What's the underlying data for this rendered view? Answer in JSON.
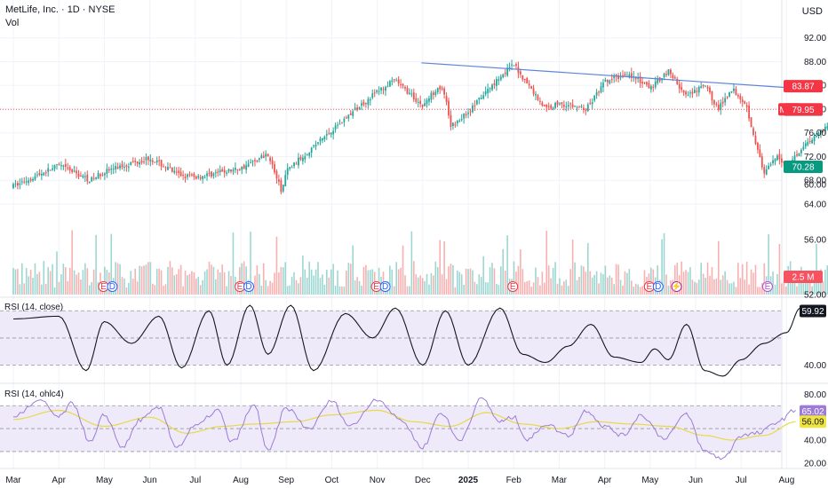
{
  "header": {
    "title": "MetLife, Inc. · 1D · NYSE",
    "volume_label": "Vol",
    "currency": "USD"
  },
  "chart_data": {
    "type": "candlestick",
    "price_axis": {
      "ticks": [
        64,
        68,
        72,
        76,
        80,
        84,
        88,
        92
      ],
      "range": [
        62.2,
        93.6
      ]
    },
    "x_axis": {
      "labels": [
        "Mar",
        "Apr",
        "May",
        "Jun",
        "Jul",
        "Aug",
        "Sep",
        "Oct",
        "Nov",
        "Dec",
        "2025",
        "Feb",
        "Mar",
        "Apr",
        "May",
        "Jun",
        "Jul",
        "Aug"
      ],
      "months_per_label": 1
    },
    "price_path": {
      "points": [
        [
          0,
          67.0
        ],
        [
          1,
          70.5
        ],
        [
          1.7,
          68.0
        ],
        [
          2,
          69.5
        ],
        [
          3,
          71.8
        ],
        [
          3.6,
          69.0
        ],
        [
          4,
          68.5
        ],
        [
          5,
          70.0
        ],
        [
          5.6,
          72.5
        ],
        [
          5.9,
          66.0
        ],
        [
          6,
          69.5
        ],
        [
          7,
          76.5
        ],
        [
          8,
          83.0
        ],
        [
          8.4,
          84.8
        ],
        [
          9,
          80.5
        ],
        [
          9.35,
          84.0
        ],
        [
          9.5,
          82.0
        ],
        [
          9.6,
          77.0
        ],
        [
          10,
          79.5
        ],
        [
          10.7,
          85.5
        ],
        [
          11,
          87.5
        ],
        [
          11.7,
          80.0
        ],
        [
          12,
          81.0
        ],
        [
          12.6,
          80.0
        ],
        [
          13,
          84.5
        ],
        [
          13.5,
          86.0
        ],
        [
          14,
          83.5
        ],
        [
          14.4,
          86.5
        ],
        [
          14.8,
          82.0
        ],
        [
          15.2,
          84.0
        ],
        [
          15.5,
          80.0
        ],
        [
          15.8,
          83.5
        ],
        [
          16.1,
          81.0
        ],
        [
          16.5,
          69.0
        ],
        [
          16.8,
          72.0
        ],
        [
          17,
          70.5
        ],
        [
          17.4,
          74.0
        ],
        [
          17.7,
          76.0
        ],
        [
          18,
          78.0
        ],
        [
          18.3,
          80.5
        ]
      ]
    },
    "trendline": {
      "from": [
        "2024-11-27",
        87.8
      ],
      "to": [
        "2025-05-14",
        83.4
      ]
    },
    "risk_reward": {
      "target": 83.87,
      "entry": 79.9,
      "stop": 70.28
    },
    "last_price": {
      "symbol": "MET",
      "value": 79.95,
      "previous": 79.9
    },
    "volume": {
      "last_label": "2.5 M",
      "axis_ticks": [
        52.0,
        56.0,
        60.0
      ]
    },
    "events": [
      {
        "month": 2.0,
        "badges": [
          "E",
          "D"
        ]
      },
      {
        "month": 5.0,
        "badges": [
          "E",
          "D"
        ]
      },
      {
        "month": 8.0,
        "badges": [
          "E",
          "D"
        ]
      },
      {
        "month": 11.0,
        "badges": [
          "E"
        ]
      },
      {
        "month": 14.0,
        "badges": [
          "E",
          "D"
        ]
      },
      {
        "month": 14.6,
        "badges": [
          "split"
        ]
      },
      {
        "month": 16.6,
        "badges": [
          "E"
        ]
      }
    ],
    "rsi_close": {
      "label": "RSI (14, close)",
      "last": "59.92",
      "tick": "40.00",
      "range": [
        34,
        64
      ],
      "band": [
        40,
        60
      ],
      "points": [
        [
          0,
          57
        ],
        [
          1.0,
          58
        ],
        [
          1.6,
          38
        ],
        [
          2.0,
          56
        ],
        [
          2.6,
          48
        ],
        [
          3.2,
          58
        ],
        [
          3.7,
          39
        ],
        [
          4.3,
          60
        ],
        [
          4.7,
          40
        ],
        [
          5.2,
          62
        ],
        [
          5.6,
          44
        ],
        [
          6.1,
          62
        ],
        [
          6.6,
          38
        ],
        [
          7.3,
          59
        ],
        [
          7.9,
          50
        ],
        [
          8.4,
          61
        ],
        [
          9.0,
          40
        ],
        [
          9.5,
          60
        ],
        [
          10.0,
          40
        ],
        [
          10.7,
          61
        ],
        [
          11.2,
          44
        ],
        [
          11.7,
          41
        ],
        [
          12.2,
          47
        ],
        [
          12.7,
          55
        ],
        [
          13.2,
          43
        ],
        [
          13.8,
          41
        ],
        [
          14.1,
          46
        ],
        [
          14.4,
          42
        ],
        [
          14.8,
          55
        ],
        [
          15.2,
          38
        ],
        [
          15.6,
          36
        ],
        [
          16.0,
          42
        ],
        [
          16.5,
          48
        ],
        [
          17.0,
          52
        ],
        [
          17.3,
          61
        ]
      ]
    },
    "rsi_ohlc4": {
      "label": "RSI (14, ohlc4)",
      "last": "65.02",
      "signal_last": "56.09",
      "ticks": [
        "80.00",
        "60.00",
        "40.00",
        "20.00"
      ],
      "range": [
        16,
        88
      ],
      "band": [
        30,
        70
      ],
      "points": [
        [
          0,
          61
        ],
        [
          0.6,
          74
        ],
        [
          1.0,
          60
        ],
        [
          1.3,
          72
        ],
        [
          1.7,
          38
        ],
        [
          2.0,
          62
        ],
        [
          2.4,
          34
        ],
        [
          2.8,
          58
        ],
        [
          3.2,
          68
        ],
        [
          3.6,
          34
        ],
        [
          4.0,
          52
        ],
        [
          4.5,
          66
        ],
        [
          4.8,
          38
        ],
        [
          5.3,
          70
        ],
        [
          5.6,
          30
        ],
        [
          6.0,
          68
        ],
        [
          6.5,
          50
        ],
        [
          7.0,
          74
        ],
        [
          7.4,
          52
        ],
        [
          8.0,
          76
        ],
        [
          8.5,
          58
        ],
        [
          9.0,
          34
        ],
        [
          9.4,
          64
        ],
        [
          9.8,
          40
        ],
        [
          10.3,
          76
        ],
        [
          10.7,
          56
        ],
        [
          11.0,
          60
        ],
        [
          11.3,
          40
        ],
        [
          11.7,
          54
        ],
        [
          12.2,
          44
        ],
        [
          12.6,
          66
        ],
        [
          13.0,
          52
        ],
        [
          13.4,
          44
        ],
        [
          13.8,
          62
        ],
        [
          14.3,
          42
        ],
        [
          14.8,
          62
        ],
        [
          15.2,
          30
        ],
        [
          15.6,
          24
        ],
        [
          16.0,
          44
        ],
        [
          16.4,
          46
        ],
        [
          16.8,
          56
        ],
        [
          17.2,
          66
        ]
      ],
      "signal_points": [
        [
          0,
          58
        ],
        [
          1.0,
          66
        ],
        [
          2.0,
          52
        ],
        [
          3.0,
          60
        ],
        [
          3.8,
          46
        ],
        [
          4.6,
          52
        ],
        [
          5.3,
          54
        ],
        [
          6.2,
          56
        ],
        [
          7.0,
          62
        ],
        [
          8.0,
          66
        ],
        [
          8.8,
          56
        ],
        [
          9.6,
          52
        ],
        [
          10.4,
          64
        ],
        [
          11.2,
          54
        ],
        [
          12.0,
          50
        ],
        [
          12.8,
          56
        ],
        [
          13.6,
          54
        ],
        [
          14.4,
          52
        ],
        [
          15.2,
          44
        ],
        [
          15.8,
          40
        ],
        [
          16.5,
          44
        ],
        [
          17.2,
          56
        ]
      ]
    },
    "colors": {
      "up": "#26a69a",
      "down": "#ef5350",
      "rsi": "#131722",
      "rsi_ohlc4": "#9c7cd6",
      "signal": "#e6d94a",
      "trend": "#5b85d9",
      "band_fill": "#efeaf9"
    }
  }
}
